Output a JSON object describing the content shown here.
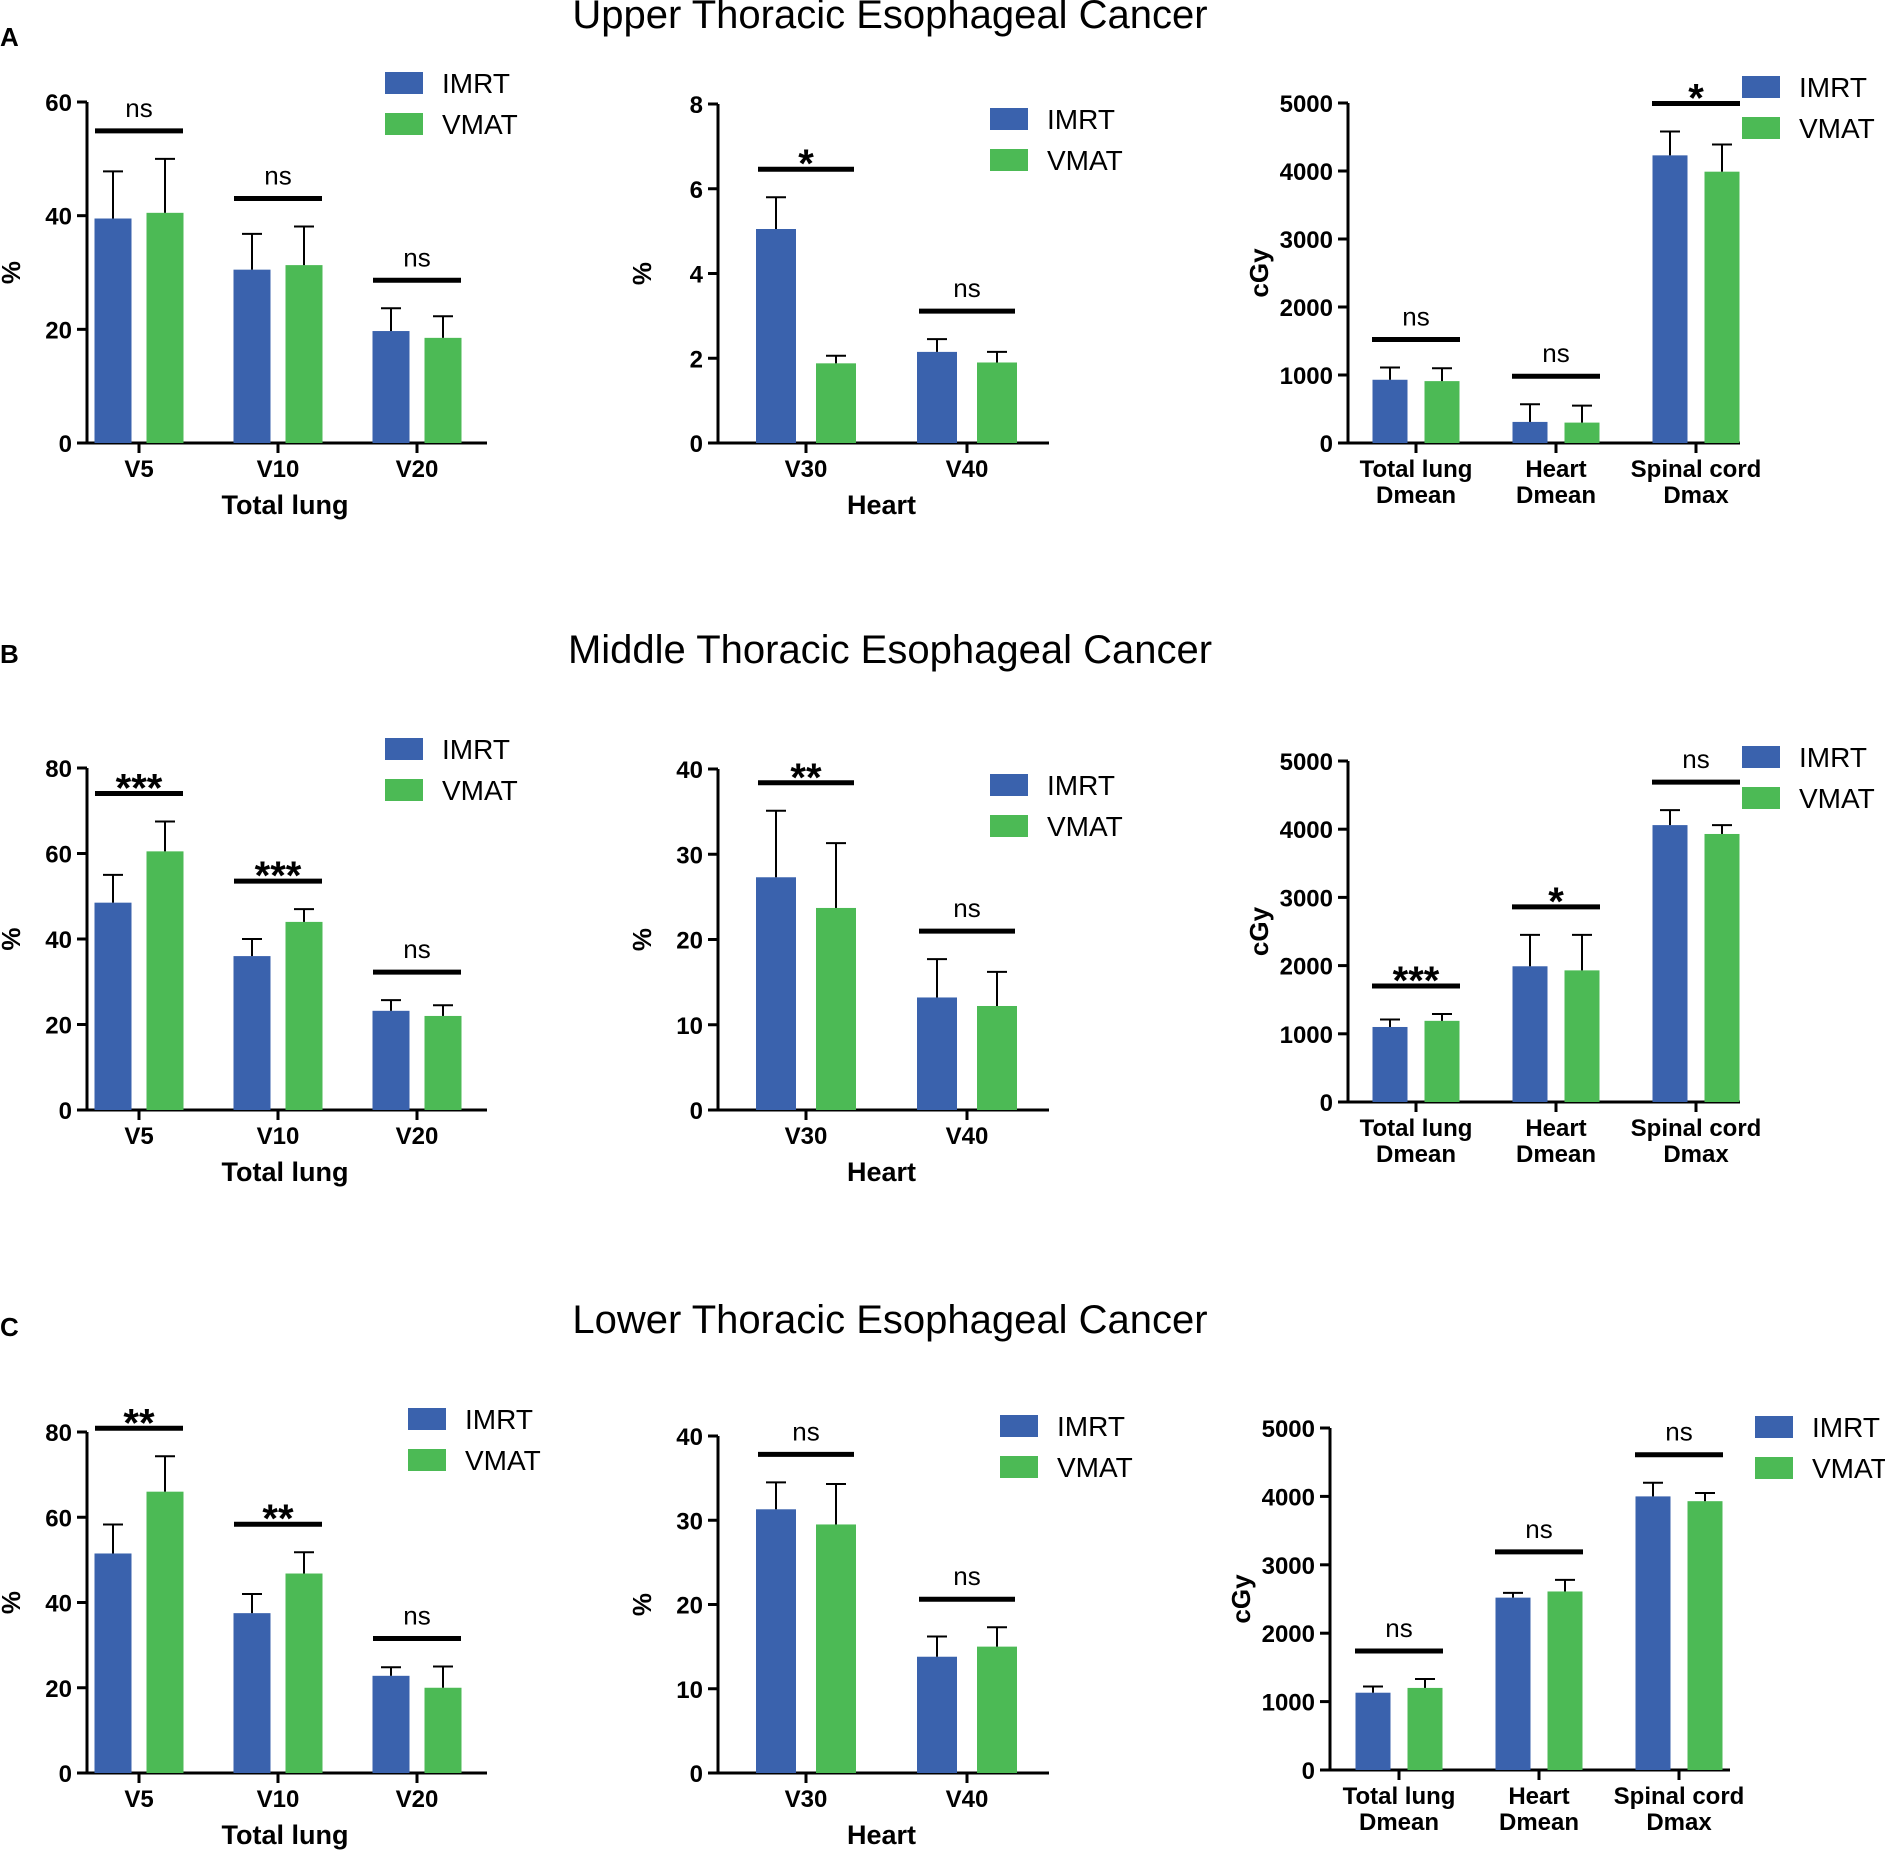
{
  "colors": {
    "IMRT": "#3a62ad",
    "VMAT": "#4cba55",
    "axis": "#000000"
  },
  "rows": [
    {
      "letter": "A",
      "title": "Upper Thoracic Esophageal Cancer"
    },
    {
      "letter": "B",
      "title": "Middle Thoracic Esophageal Cancer"
    },
    {
      "letter": "C",
      "title": "Lower Thoracic Esophageal Cancer"
    }
  ],
  "chart_data": [
    {
      "type": "bar",
      "row": 0,
      "col": 0,
      "title": "",
      "ylabel": "%",
      "xlabel": "Total lung",
      "ylim": [
        0,
        60
      ],
      "yticks": [
        0,
        20,
        40,
        60
      ],
      "categories": [
        [
          "V5"
        ],
        [
          "V10"
        ],
        [
          "V20"
        ]
      ],
      "series": [
        {
          "name": "IMRT",
          "values": [
            39.5,
            30.5,
            19.7
          ],
          "errors": [
            8.3,
            6.3,
            4.0
          ]
        },
        {
          "name": "VMAT",
          "values": [
            40.5,
            31.3,
            18.5
          ],
          "errors": [
            9.5,
            6.8,
            3.8
          ]
        }
      ],
      "significance": [
        "ns",
        "ns",
        "ns"
      ],
      "legend": "top-right"
    },
    {
      "type": "bar",
      "row": 0,
      "col": 1,
      "title": "",
      "ylabel": "%",
      "xlabel": "Heart",
      "ylim": [
        0,
        8
      ],
      "yticks": [
        0,
        2,
        4,
        6,
        8
      ],
      "categories": [
        [
          "V30"
        ],
        [
          "V40"
        ]
      ],
      "series": [
        {
          "name": "IMRT",
          "values": [
            5.05,
            2.15
          ],
          "errors": [
            0.75,
            0.3
          ]
        },
        {
          "name": "VMAT",
          "values": [
            1.88,
            1.9
          ],
          "errors": [
            0.18,
            0.25
          ]
        }
      ],
      "significance": [
        "*",
        "ns"
      ],
      "legend": "top-right"
    },
    {
      "type": "bar",
      "row": 0,
      "col": 2,
      "title": "",
      "ylabel": "cGy",
      "xlabel": "",
      "ylim": [
        0,
        5000
      ],
      "yticks": [
        0,
        1000,
        2000,
        3000,
        4000,
        5000
      ],
      "categories": [
        [
          "Total lung",
          "Dmean"
        ],
        [
          "Heart",
          "Dmean"
        ],
        [
          "Spinal cord",
          "Dmax"
        ]
      ],
      "series": [
        {
          "name": "IMRT",
          "values": [
            930,
            310,
            4230
          ],
          "errors": [
            180,
            260,
            350
          ]
        },
        {
          "name": "VMAT",
          "values": [
            910,
            300,
            3990
          ],
          "errors": [
            190,
            250,
            400
          ]
        }
      ],
      "significance": [
        "ns",
        "ns",
        "*"
      ],
      "legend": "top-right"
    },
    {
      "type": "bar",
      "row": 1,
      "col": 0,
      "title": "",
      "ylabel": "%",
      "xlabel": "Total lung",
      "ylim": [
        0,
        80
      ],
      "yticks": [
        0,
        20,
        40,
        60,
        80
      ],
      "categories": [
        [
          "V5"
        ],
        [
          "V10"
        ],
        [
          "V20"
        ]
      ],
      "series": [
        {
          "name": "IMRT",
          "values": [
            48.5,
            36.0,
            23.2
          ],
          "errors": [
            6.5,
            4.0,
            2.5
          ]
        },
        {
          "name": "VMAT",
          "values": [
            60.5,
            44.0,
            22.0
          ],
          "errors": [
            7.0,
            3.0,
            2.5
          ]
        }
      ],
      "significance": [
        "***",
        "***",
        "ns"
      ],
      "legend": "top-right"
    },
    {
      "type": "bar",
      "row": 1,
      "col": 1,
      "title": "",
      "ylabel": "%",
      "xlabel": "Heart",
      "ylim": [
        0,
        40
      ],
      "yticks": [
        0,
        10,
        20,
        30,
        40
      ],
      "categories": [
        [
          "V30"
        ],
        [
          "V40"
        ]
      ],
      "series": [
        {
          "name": "IMRT",
          "values": [
            27.3,
            13.2
          ],
          "errors": [
            7.8,
            4.5
          ]
        },
        {
          "name": "VMAT",
          "values": [
            23.7,
            12.2
          ],
          "errors": [
            7.6,
            4.0
          ]
        }
      ],
      "significance": [
        "**",
        "ns"
      ],
      "legend": "top-right"
    },
    {
      "type": "bar",
      "row": 1,
      "col": 2,
      "title": "",
      "ylabel": "cGy",
      "xlabel": "",
      "ylim": [
        0,
        5000
      ],
      "yticks": [
        0,
        1000,
        2000,
        3000,
        4000,
        5000
      ],
      "categories": [
        [
          "Total lung",
          "Dmean"
        ],
        [
          "Heart",
          "Dmean"
        ],
        [
          "Spinal cord",
          "Dmax"
        ]
      ],
      "series": [
        {
          "name": "IMRT",
          "values": [
            1100,
            1990,
            4060
          ],
          "errors": [
            110,
            460,
            220
          ]
        },
        {
          "name": "VMAT",
          "values": [
            1190,
            1930,
            3930
          ],
          "errors": [
            100,
            520,
            130
          ]
        }
      ],
      "significance": [
        "***",
        "*",
        "ns"
      ],
      "legend": "top-right"
    },
    {
      "type": "bar",
      "row": 2,
      "col": 0,
      "title": "",
      "ylabel": "%",
      "xlabel": "Total lung",
      "ylim": [
        0,
        80
      ],
      "yticks": [
        0,
        20,
        40,
        60,
        80
      ],
      "categories": [
        [
          "V5"
        ],
        [
          "V10"
        ],
        [
          "V20"
        ]
      ],
      "series": [
        {
          "name": "IMRT",
          "values": [
            51.5,
            37.5,
            22.8
          ],
          "errors": [
            6.8,
            4.5,
            2.0
          ]
        },
        {
          "name": "VMAT",
          "values": [
            66.0,
            46.8,
            20.0
          ],
          "errors": [
            8.3,
            5.0,
            5.0
          ]
        }
      ],
      "significance": [
        "**",
        "**",
        "ns"
      ],
      "legend": "top-right"
    },
    {
      "type": "bar",
      "row": 2,
      "col": 1,
      "title": "",
      "ylabel": "%",
      "xlabel": "Heart",
      "ylim": [
        0,
        40
      ],
      "yticks": [
        0,
        10,
        20,
        30,
        40
      ],
      "categories": [
        [
          "V30"
        ],
        [
          "V40"
        ]
      ],
      "series": [
        {
          "name": "IMRT",
          "values": [
            31.3,
            13.8
          ],
          "errors": [
            3.2,
            2.4
          ]
        },
        {
          "name": "VMAT",
          "values": [
            29.5,
            15.0
          ],
          "errors": [
            4.8,
            2.3
          ]
        }
      ],
      "significance": [
        "ns",
        "ns"
      ],
      "legend": "top-right"
    },
    {
      "type": "bar",
      "row": 2,
      "col": 2,
      "title": "",
      "ylabel": "cGy",
      "xlabel": "",
      "ylim": [
        0,
        5000
      ],
      "yticks": [
        0,
        1000,
        2000,
        3000,
        4000,
        5000
      ],
      "categories": [
        [
          "Total lung",
          "Dmean"
        ],
        [
          "Heart",
          "Dmean"
        ],
        [
          "Spinal cord",
          "Dmax"
        ]
      ],
      "series": [
        {
          "name": "IMRT",
          "values": [
            1130,
            2520,
            4000
          ],
          "errors": [
            90,
            70,
            200
          ]
        },
        {
          "name": "VMAT",
          "values": [
            1200,
            2610,
            3930
          ],
          "errors": [
            130,
            170,
            120
          ]
        }
      ],
      "significance": [
        "ns",
        "ns",
        "ns"
      ],
      "legend": "top-right"
    }
  ]
}
